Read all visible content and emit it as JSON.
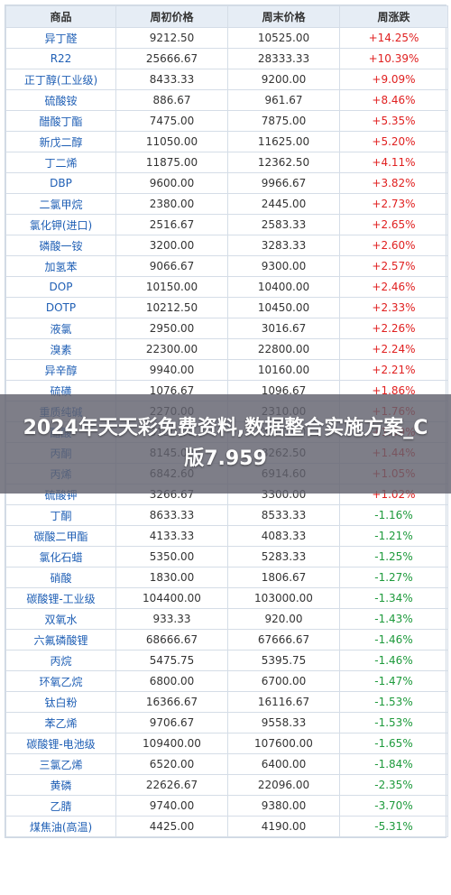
{
  "table": {
    "headers": [
      "商品",
      "周初价格",
      "周末价格",
      "周涨跌"
    ],
    "rows": [
      {
        "name": "异丁醛",
        "start": "9212.50",
        "end": "10525.00",
        "change": "+14.25%",
        "dir": "up"
      },
      {
        "name": "R22",
        "start": "25666.67",
        "end": "28333.33",
        "change": "+10.39%",
        "dir": "up"
      },
      {
        "name": "正丁醇(工业级)",
        "start": "8433.33",
        "end": "9200.00",
        "change": "+9.09%",
        "dir": "up"
      },
      {
        "name": "硫酸铵",
        "start": "886.67",
        "end": "961.67",
        "change": "+8.46%",
        "dir": "up"
      },
      {
        "name": "醋酸丁酯",
        "start": "7475.00",
        "end": "7875.00",
        "change": "+5.35%",
        "dir": "up"
      },
      {
        "name": "新戊二醇",
        "start": "11050.00",
        "end": "11625.00",
        "change": "+5.20%",
        "dir": "up"
      },
      {
        "name": "丁二烯",
        "start": "11875.00",
        "end": "12362.50",
        "change": "+4.11%",
        "dir": "up"
      },
      {
        "name": "DBP",
        "start": "9600.00",
        "end": "9966.67",
        "change": "+3.82%",
        "dir": "up"
      },
      {
        "name": "二氯甲烷",
        "start": "2380.00",
        "end": "2445.00",
        "change": "+2.73%",
        "dir": "up"
      },
      {
        "name": "氯化钾(进口)",
        "start": "2516.67",
        "end": "2583.33",
        "change": "+2.65%",
        "dir": "up"
      },
      {
        "name": "磷酸一铵",
        "start": "3200.00",
        "end": "3283.33",
        "change": "+2.60%",
        "dir": "up"
      },
      {
        "name": "加氢苯",
        "start": "9066.67",
        "end": "9300.00",
        "change": "+2.57%",
        "dir": "up"
      },
      {
        "name": "DOP",
        "start": "10150.00",
        "end": "10400.00",
        "change": "+2.46%",
        "dir": "up"
      },
      {
        "name": "DOTP",
        "start": "10212.50",
        "end": "10450.00",
        "change": "+2.33%",
        "dir": "up"
      },
      {
        "name": "液氯",
        "start": "2950.00",
        "end": "3016.67",
        "change": "+2.26%",
        "dir": "up"
      },
      {
        "name": "溴素",
        "start": "22300.00",
        "end": "22800.00",
        "change": "+2.24%",
        "dir": "up"
      },
      {
        "name": "异辛醇",
        "start": "9940.00",
        "end": "10160.00",
        "change": "+2.21%",
        "dir": "up"
      },
      {
        "name": "硫磺",
        "start": "1076.67",
        "end": "1096.67",
        "change": "+1.86%",
        "dir": "up"
      },
      {
        "name": "重质纯碱",
        "start": "2270.00",
        "end": "2310.00",
        "change": "+1.76%",
        "dir": "up"
      },
      {
        "name": "醋酸",
        "start": "3150.00",
        "end": "3200.00",
        "change": "+1.59%",
        "dir": "up"
      },
      {
        "name": "丙酮",
        "start": "8145.00",
        "end": "8262.50",
        "change": "+1.44%",
        "dir": "up"
      },
      {
        "name": "丙烯",
        "start": "6842.60",
        "end": "6914.60",
        "change": "+1.05%",
        "dir": "up"
      },
      {
        "name": "硫酸钾",
        "start": "3266.67",
        "end": "3300.00",
        "change": "+1.02%",
        "dir": "up"
      },
      {
        "name": "丁酮",
        "start": "8633.33",
        "end": "8533.33",
        "change": "-1.16%",
        "dir": "down"
      },
      {
        "name": "碳酸二甲酯",
        "start": "4133.33",
        "end": "4083.33",
        "change": "-1.21%",
        "dir": "down"
      },
      {
        "name": "氯化石蜡",
        "start": "5350.00",
        "end": "5283.33",
        "change": "-1.25%",
        "dir": "down"
      },
      {
        "name": "硝酸",
        "start": "1830.00",
        "end": "1806.67",
        "change": "-1.27%",
        "dir": "down"
      },
      {
        "name": "碳酸锂-工业级",
        "start": "104400.00",
        "end": "103000.00",
        "change": "-1.34%",
        "dir": "down"
      },
      {
        "name": "双氧水",
        "start": "933.33",
        "end": "920.00",
        "change": "-1.43%",
        "dir": "down"
      },
      {
        "name": "六氟磷酸锂",
        "start": "68666.67",
        "end": "67666.67",
        "change": "-1.46%",
        "dir": "down"
      },
      {
        "name": "丙烷",
        "start": "5475.75",
        "end": "5395.75",
        "change": "-1.46%",
        "dir": "down"
      },
      {
        "name": "环氧乙烷",
        "start": "6800.00",
        "end": "6700.00",
        "change": "-1.47%",
        "dir": "down"
      },
      {
        "name": "钛白粉",
        "start": "16366.67",
        "end": "16116.67",
        "change": "-1.53%",
        "dir": "down"
      },
      {
        "name": "苯乙烯",
        "start": "9706.67",
        "end": "9558.33",
        "change": "-1.53%",
        "dir": "down"
      },
      {
        "name": "碳酸锂-电池级",
        "start": "109400.00",
        "end": "107600.00",
        "change": "-1.65%",
        "dir": "down"
      },
      {
        "name": "三氯乙烯",
        "start": "6520.00",
        "end": "6400.00",
        "change": "-1.84%",
        "dir": "down"
      },
      {
        "name": "黄磷",
        "start": "22626.67",
        "end": "22096.00",
        "change": "-2.35%",
        "dir": "down"
      },
      {
        "name": "乙腈",
        "start": "9740.00",
        "end": "9380.00",
        "change": "-3.70%",
        "dir": "down"
      },
      {
        "name": "煤焦油(高温)",
        "start": "4425.00",
        "end": "4190.00",
        "change": "-5.31%",
        "dir": "down"
      }
    ]
  },
  "overlay": {
    "title": "2024年天天彩免费资料,数据整合实施方案_C版7.959"
  }
}
